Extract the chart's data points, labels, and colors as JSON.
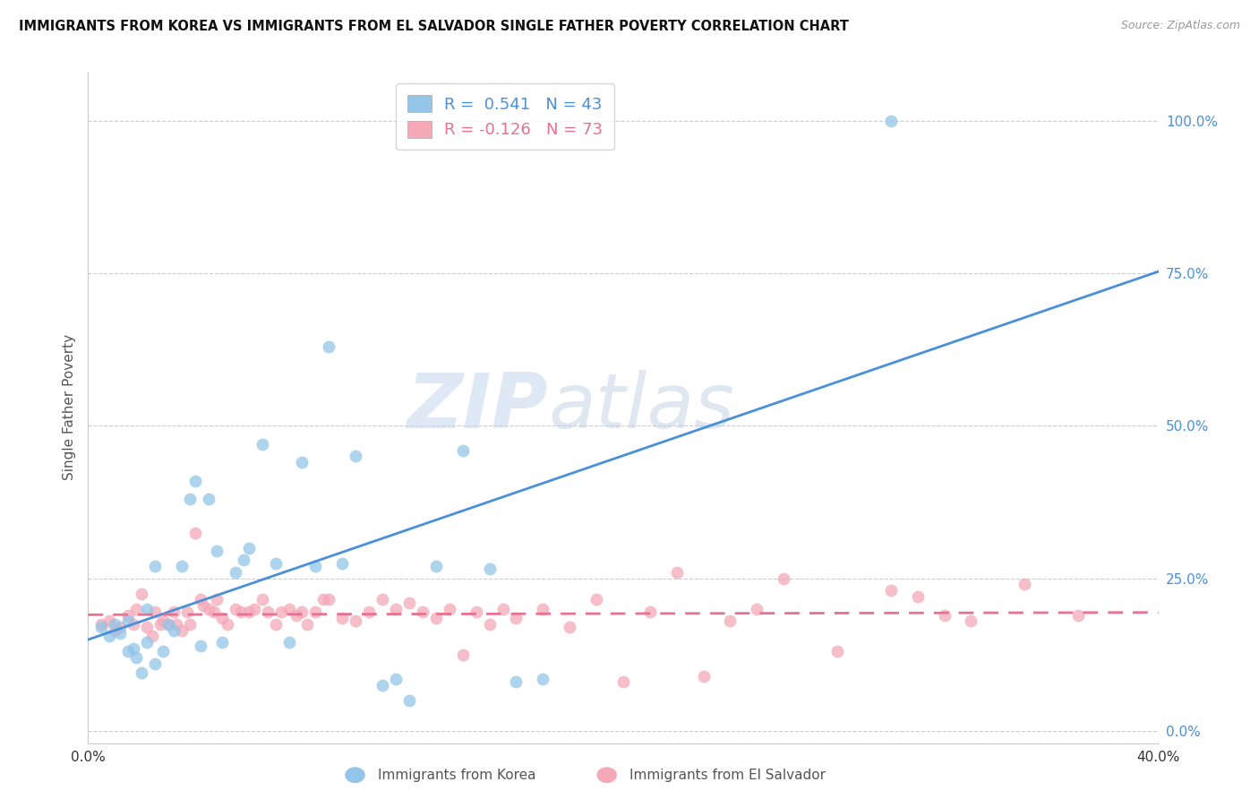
{
  "title": "IMMIGRANTS FROM KOREA VS IMMIGRANTS FROM EL SALVADOR SINGLE FATHER POVERTY CORRELATION CHART",
  "source": "Source: ZipAtlas.com",
  "ylabel": "Single Father Poverty",
  "ytick_labels": [
    "0.0%",
    "25.0%",
    "50.0%",
    "75.0%",
    "100.0%"
  ],
  "ytick_values": [
    0.0,
    0.25,
    0.5,
    0.75,
    1.0
  ],
  "xlim": [
    0.0,
    0.4
  ],
  "ylim": [
    -0.02,
    1.08
  ],
  "korea_R": 0.541,
  "korea_N": 43,
  "salvador_R": -0.126,
  "salvador_N": 73,
  "korea_color": "#92C5E8",
  "salvador_color": "#F4A8B8",
  "korea_line_color": "#4A90D9",
  "salvador_line_color": "#E87090",
  "watermark_zip": "ZIP",
  "watermark_atlas": "atlas",
  "korea_x": [
    0.005,
    0.008,
    0.01,
    0.012,
    0.015,
    0.015,
    0.017,
    0.018,
    0.02,
    0.022,
    0.022,
    0.025,
    0.025,
    0.028,
    0.03,
    0.032,
    0.035,
    0.038,
    0.04,
    0.042,
    0.045,
    0.048,
    0.05,
    0.055,
    0.058,
    0.06,
    0.065,
    0.07,
    0.075,
    0.08,
    0.085,
    0.09,
    0.095,
    0.1,
    0.11,
    0.115,
    0.12,
    0.13,
    0.14,
    0.15,
    0.16,
    0.17,
    0.3
  ],
  "korea_y": [
    0.17,
    0.155,
    0.175,
    0.16,
    0.13,
    0.18,
    0.135,
    0.12,
    0.095,
    0.145,
    0.2,
    0.11,
    0.27,
    0.13,
    0.175,
    0.165,
    0.27,
    0.38,
    0.41,
    0.14,
    0.38,
    0.295,
    0.145,
    0.26,
    0.28,
    0.3,
    0.47,
    0.275,
    0.145,
    0.44,
    0.27,
    0.63,
    0.275,
    0.45,
    0.075,
    0.085,
    0.05,
    0.27,
    0.46,
    0.265,
    0.08,
    0.085,
    1.0
  ],
  "salvador_x": [
    0.005,
    0.008,
    0.01,
    0.012,
    0.015,
    0.017,
    0.018,
    0.02,
    0.022,
    0.024,
    0.025,
    0.027,
    0.028,
    0.03,
    0.032,
    0.033,
    0.035,
    0.037,
    0.038,
    0.04,
    0.042,
    0.043,
    0.045,
    0.047,
    0.048,
    0.05,
    0.052,
    0.055,
    0.057,
    0.06,
    0.062,
    0.065,
    0.067,
    0.07,
    0.072,
    0.075,
    0.078,
    0.08,
    0.082,
    0.085,
    0.088,
    0.09,
    0.095,
    0.1,
    0.105,
    0.11,
    0.115,
    0.12,
    0.125,
    0.13,
    0.135,
    0.14,
    0.145,
    0.15,
    0.155,
    0.16,
    0.17,
    0.18,
    0.19,
    0.2,
    0.21,
    0.22,
    0.23,
    0.24,
    0.25,
    0.26,
    0.28,
    0.3,
    0.31,
    0.32,
    0.33,
    0.35,
    0.37
  ],
  "salvador_y": [
    0.175,
    0.18,
    0.165,
    0.17,
    0.19,
    0.175,
    0.2,
    0.225,
    0.17,
    0.155,
    0.195,
    0.175,
    0.18,
    0.175,
    0.195,
    0.175,
    0.165,
    0.195,
    0.175,
    0.325,
    0.215,
    0.205,
    0.2,
    0.195,
    0.215,
    0.185,
    0.175,
    0.2,
    0.195,
    0.195,
    0.2,
    0.215,
    0.195,
    0.175,
    0.195,
    0.2,
    0.19,
    0.195,
    0.175,
    0.195,
    0.215,
    0.215,
    0.185,
    0.18,
    0.195,
    0.215,
    0.2,
    0.21,
    0.195,
    0.185,
    0.2,
    0.125,
    0.195,
    0.175,
    0.2,
    0.185,
    0.2,
    0.17,
    0.215,
    0.08,
    0.195,
    0.26,
    0.09,
    0.18,
    0.2,
    0.25,
    0.13,
    0.23,
    0.22,
    0.19,
    0.18,
    0.24,
    0.19
  ]
}
